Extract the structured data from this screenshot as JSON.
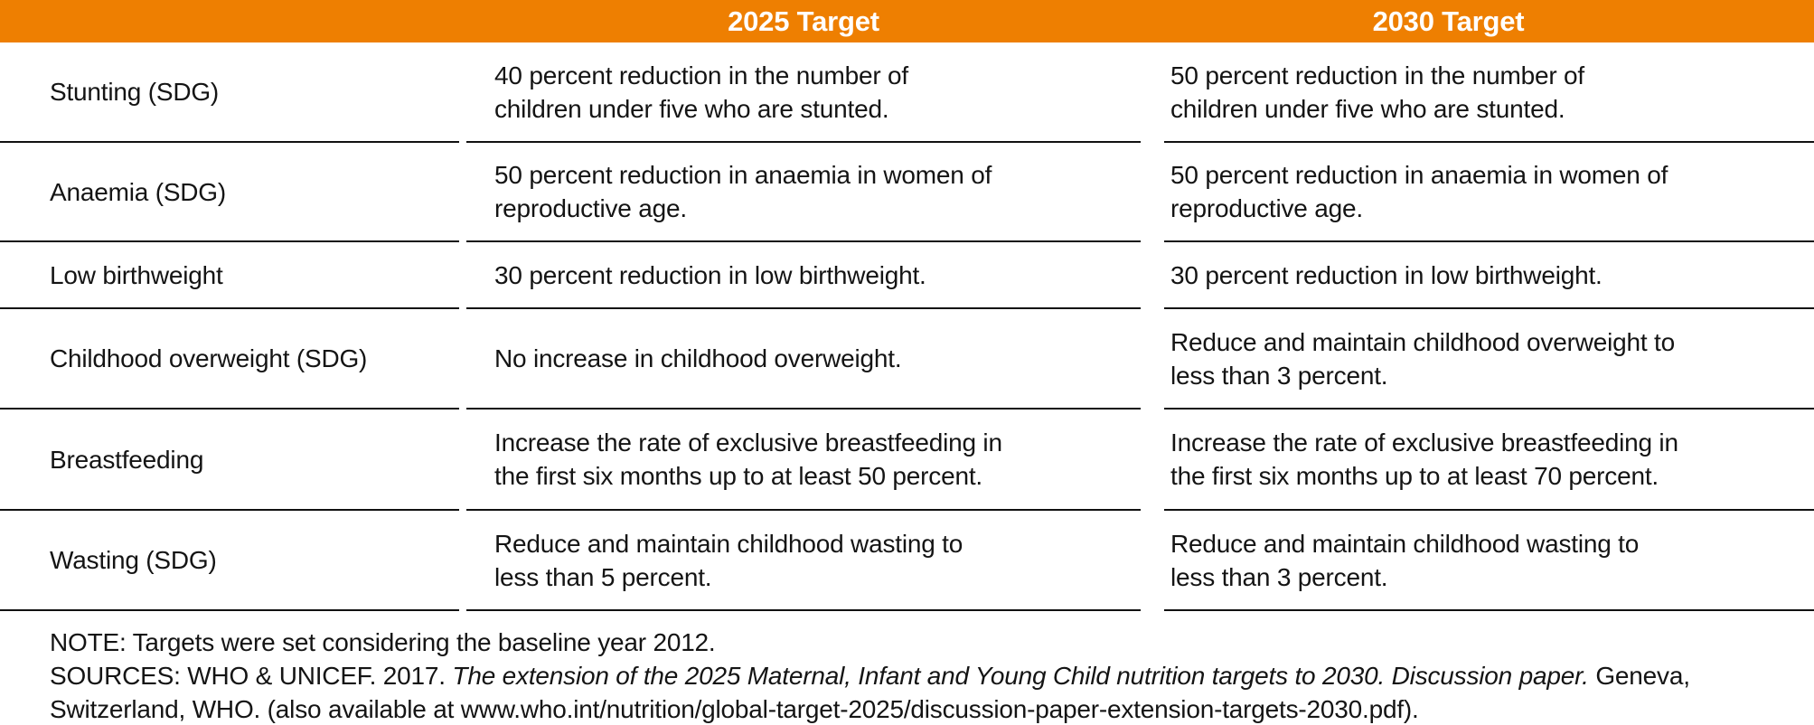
{
  "table": {
    "accent_color": "#EE7F01",
    "header": {
      "col_2025": "2025 Target",
      "col_2030": "2030 Target"
    },
    "rows": [
      {
        "indicator": "Stunting (SDG)",
        "target_2025": "40 percent reduction in the number of\nchildren under five who are stunted.",
        "target_2030": "50 percent reduction in the number of\nchildren under five who are stunted."
      },
      {
        "indicator": "Anaemia (SDG)",
        "target_2025": "50 percent reduction in anaemia in women of\nreproductive age.",
        "target_2030": "50 percent reduction in anaemia in women of\nreproductive age."
      },
      {
        "indicator": "Low birthweight",
        "target_2025": "30 percent reduction in low birthweight.",
        "target_2030": "30 percent reduction in low birthweight."
      },
      {
        "indicator": "Childhood overweight (SDG)",
        "target_2025": "No increase in childhood overweight.",
        "target_2030": "Reduce and maintain childhood overweight to\nless than 3 percent."
      },
      {
        "indicator": "Breastfeeding",
        "target_2025": "Increase the rate of exclusive breastfeeding in\nthe first six months up to at least 50 percent.",
        "target_2030": "Increase the rate of exclusive breastfeeding in\nthe first six months up to at least 70 percent."
      },
      {
        "indicator": "Wasting (SDG)",
        "target_2025": "Reduce and maintain childhood wasting to\nless than 5 percent.",
        "target_2030": "Reduce and maintain childhood wasting to\nless than 3 percent."
      }
    ]
  },
  "notes": {
    "note": "NOTE: Targets were set considering the baseline year 2012.",
    "sources_prefix": "SOURCES: WHO & UNICEF. 2017. ",
    "sources_italic": "The extension of the 2025 Maternal, Infant and Young Child nutrition targets to 2030. Discussion paper.",
    "sources_after_italic": " Geneva,",
    "sources_line2": "Switzerland, WHO. (also available at www.who.int/nutrition/global-target-2025/discussion-paper-extension-targets-2030.pdf)."
  }
}
